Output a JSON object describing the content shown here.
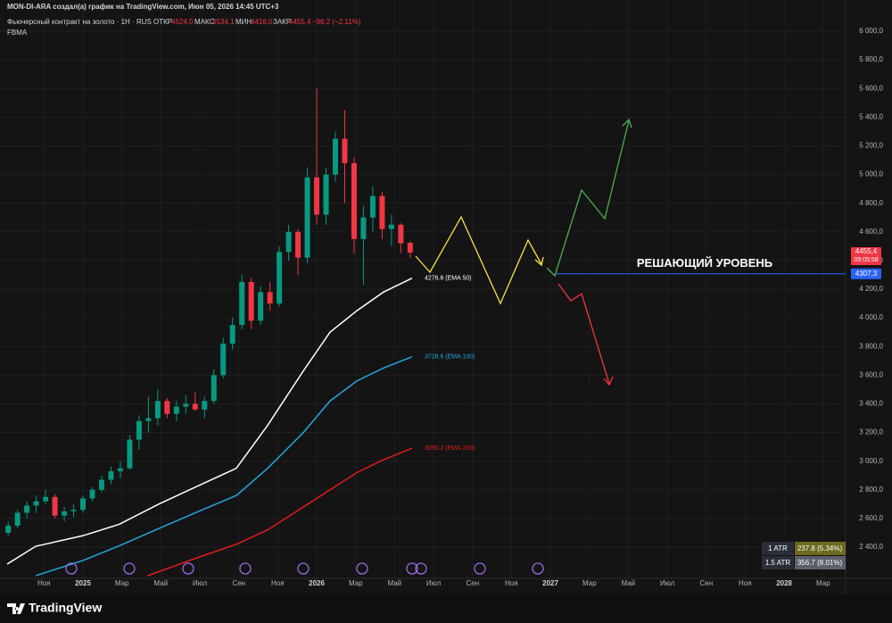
{
  "header": {
    "author_line": "MON-DI-ARA создал(а) график на TradingView.com, Июн 05, 2026 14:45 UTC+3",
    "symbol": "Фьючерсный контракт на золото · 1H · RUS",
    "open_label": "ОТКР",
    "open": "4524,0",
    "high_label": "МАКС",
    "high": "4534,1",
    "low_label": "МИН",
    "low": "4416,0",
    "close_label": "ЗАКР",
    "close": "4455,4",
    "change": "−96,2 (−2,11%)",
    "indicator": "FBMA"
  },
  "footer": {
    "logo": "TradingView"
  },
  "chart_data": {
    "type": "candlestick",
    "x": [
      2024.68,
      2024.72,
      2024.76,
      2024.8,
      2024.84,
      2024.88,
      2024.92,
      2024.96,
      2025.0,
      2025.04,
      2025.08,
      2025.12,
      2025.16,
      2025.2,
      2025.24,
      2025.28,
      2025.32,
      2025.36,
      2025.4,
      2025.44,
      2025.48,
      2025.52,
      2025.56,
      2025.6,
      2025.64,
      2025.68,
      2025.72,
      2025.76,
      2025.8,
      2025.84,
      2025.88,
      2025.92,
      2025.96,
      2026.0,
      2026.04,
      2026.08,
      2026.12,
      2026.16,
      2026.2,
      2026.24,
      2026.28,
      2026.32,
      2026.36,
      2026.4
    ],
    "open": [
      2500,
      2550,
      2640,
      2690,
      2720,
      2750,
      2620,
      2650,
      2660,
      2740,
      2800,
      2870,
      2930,
      2950,
      3150,
      3280,
      3300,
      3420,
      3330,
      3380,
      3400,
      3360,
      3420,
      3600,
      3820,
      3950,
      4250,
      3980,
      4180,
      4100,
      4460,
      4600,
      4420,
      4980,
      4720,
      5000,
      5250,
      5080,
      4550,
      4700,
      4850,
      4620,
      4650,
      4524
    ],
    "high": [
      2580,
      2660,
      2720,
      2760,
      2800,
      2770,
      2680,
      2700,
      2760,
      2820,
      2900,
      2960,
      3000,
      3180,
      3320,
      3450,
      3500,
      3440,
      3420,
      3460,
      3480,
      3450,
      3640,
      3860,
      4000,
      4300,
      4280,
      4220,
      4250,
      4500,
      4650,
      4620,
      5050,
      5600,
      5050,
      5300,
      5450,
      5120,
      4780,
      4920,
      4880,
      4720,
      4660,
      4534.1
    ],
    "low": [
      2480,
      2530,
      2600,
      2640,
      2700,
      2600,
      2580,
      2610,
      2640,
      2720,
      2780,
      2840,
      2880,
      2940,
      3080,
      3200,
      3250,
      3300,
      3280,
      3330,
      3350,
      3300,
      3400,
      3580,
      3780,
      3920,
      3920,
      3950,
      4050,
      4080,
      4400,
      4300,
      4380,
      4650,
      4650,
      4950,
      4800,
      4450,
      4230,
      4600,
      4550,
      4500,
      4450,
      4416
    ],
    "close": [
      2550,
      2640,
      2690,
      2720,
      2750,
      2620,
      2650,
      2660,
      2740,
      2800,
      2870,
      2930,
      2950,
      3150,
      3280,
      3300,
      3420,
      3330,
      3380,
      3400,
      3360,
      3420,
      3600,
      3820,
      3950,
      4250,
      3980,
      4180,
      4100,
      4460,
      4600,
      4420,
      4980,
      4720,
      5000,
      5250,
      5080,
      4550,
      4700,
      4850,
      4620,
      4650,
      4520,
      4455.4
    ],
    "up_color": "#089981",
    "down_color": "#f23645",
    "series": [
      {
        "name": "EMA 50",
        "color": "#ffffff",
        "end_label": "4276.6 (EMA 50)",
        "x": [
          2024.676,
          2024.798,
          2025.0,
          2025.156,
          2025.324,
          2025.496,
          2025.656,
          2025.79,
          2025.943,
          2026.057,
          2026.172,
          2026.286,
          2026.408
        ],
        "values": [
          2282,
          2406,
          2480,
          2560,
          2700,
          2830,
          2950,
          3250,
          3630,
          3900,
          4050,
          4180,
          4276.6
        ]
      },
      {
        "name": "EMA 100",
        "color": "#26a6d9",
        "end_label": "3728.6 (EMA 100)",
        "x": [
          2024.798,
          2025.0,
          2025.156,
          2025.324,
          2025.496,
          2025.656,
          2025.79,
          2025.943,
          2026.057,
          2026.172,
          2026.286,
          2026.408
        ],
        "values": [
          2201,
          2307,
          2410,
          2530,
          2650,
          2760,
          2950,
          3200,
          3420,
          3560,
          3650,
          3728.6
        ]
      },
      {
        "name": "EMA 200",
        "color": "#e31b1b",
        "end_label": "3090.2 (EMA 200)",
        "x": [
          2025.275,
          2025.496,
          2025.656,
          2025.79,
          2025.943,
          2026.057,
          2026.172,
          2026.286,
          2026.408
        ],
        "values": [
          2200,
          2330,
          2420,
          2520,
          2680,
          2800,
          2920,
          3010,
          3090.2
        ]
      }
    ],
    "level": {
      "value": 4307.3,
      "label": "4307,3",
      "text": "РЕШАЮЩИЙ УРОВЕНЬ",
      "color": "#2962ff"
    },
    "last_price": {
      "value": 4455.4,
      "label": "4455,4",
      "timer": "09:05:58",
      "color": "#f23645"
    },
    "atr": [
      {
        "name": "1 ATR",
        "value": "237.8 (5.34%)",
        "color": "#6b6a1e"
      },
      {
        "name": "1.5 ATR",
        "value": "356.7 (8.01%)",
        "color": "#5d606b"
      }
    ],
    "xlim": [
      2024.645,
      2028.263
    ],
    "xticks": [
      {
        "value": 2024.833,
        "label": "Ноя"
      },
      2025,
      {
        "value": 2025.167,
        "label": "Мар"
      },
      {
        "value": 2025.333,
        "label": "Май"
      },
      {
        "value": 2025.5,
        "label": "Июл"
      },
      {
        "value": 2025.667,
        "label": "Сен"
      },
      {
        "value": 2025.833,
        "label": "Ноя"
      },
      2026,
      {
        "value": 2026.167,
        "label": "Мар"
      },
      {
        "value": 2026.333,
        "label": "Май"
      },
      {
        "value": 2026.5,
        "label": "Июл"
      },
      {
        "value": 2026.667,
        "label": "Сен"
      },
      {
        "value": 2026.833,
        "label": "Ноя"
      },
      2027,
      {
        "value": 2027.167,
        "label": "Мар"
      },
      {
        "value": 2027.333,
        "label": "Май"
      },
      {
        "value": 2027.5,
        "label": "Июл"
      },
      {
        "value": 2027.667,
        "label": "Сен"
      },
      {
        "value": 2027.833,
        "label": "Ноя"
      },
      2028,
      {
        "value": 2028.167,
        "label": "Мар"
      }
    ],
    "ylim": [
      2182,
      6218
    ],
    "yticks": [
      {
        "value": 2400,
        "label": "2 400,0"
      },
      {
        "value": 2600,
        "label": "2 600,0"
      },
      {
        "value": 2800,
        "label": "2 800,0"
      },
      {
        "value": 3000,
        "label": "3 000,0"
      },
      {
        "value": 3200,
        "label": "3 200,0"
      },
      {
        "value": 3400,
        "label": "3 400,0"
      },
      {
        "value": 3600,
        "label": "3 600,0"
      },
      {
        "value": 3800,
        "label": "3 800,0"
      },
      {
        "value": 4000,
        "label": "4 000,0"
      },
      {
        "value": 4200,
        "label": "4 200,0"
      },
      {
        "value": 4400,
        "label": "4 400,0"
      },
      {
        "value": 4600,
        "label": "4 600,0"
      },
      {
        "value": 4800,
        "label": "4 800,0"
      },
      {
        "value": 5000,
        "label": "5 000,0"
      },
      {
        "value": 5200,
        "label": "5 200,0"
      },
      {
        "value": 5400,
        "label": "5 400,0"
      },
      {
        "value": 5600,
        "label": "5 600,0"
      },
      {
        "value": 5800,
        "label": "5 800,0"
      },
      {
        "value": 6000,
        "label": "6 000,0"
      }
    ],
    "grid": true
  }
}
